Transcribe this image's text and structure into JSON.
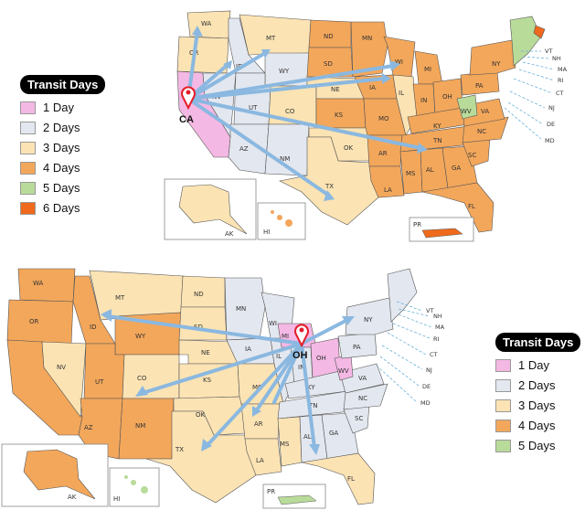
{
  "colors": {
    "day1": "#f4b8e4",
    "day2": "#e3e7ef",
    "day3": "#fbe3b4",
    "day4": "#f3a75b",
    "day5": "#b9db9a",
    "day6": "#ef6a1c",
    "arrow": "#8ab8e0",
    "border": "#555555",
    "pin": "#e41e2a"
  },
  "maps": [
    {
      "origin": "CA",
      "legend": {
        "title": "Transit Days",
        "items": [
          {
            "label": "1 Day",
            "color_key": "day1"
          },
          {
            "label": "2 Days",
            "color_key": "day2"
          },
          {
            "label": "3 Days",
            "color_key": "day3"
          },
          {
            "label": "4 Days",
            "color_key": "day4"
          },
          {
            "label": "5 Days",
            "color_key": "day5"
          },
          {
            "label": "6 Days",
            "color_key": "day6"
          }
        ]
      },
      "insets": [
        "AK",
        "HI",
        "PR"
      ]
    },
    {
      "origin": "OH",
      "legend": {
        "title": "Transit Days",
        "items": [
          {
            "label": "1 Day",
            "color_key": "day1"
          },
          {
            "label": "2 Days",
            "color_key": "day2"
          },
          {
            "label": "3 Days",
            "color_key": "day3"
          },
          {
            "label": "4 Days",
            "color_key": "day4"
          },
          {
            "label": "5 Days",
            "color_key": "day5"
          }
        ]
      },
      "insets": [
        "AK",
        "HI",
        "PR"
      ]
    }
  ],
  "northeast_labels": [
    "VT",
    "NH",
    "MA",
    "RI",
    "CT",
    "NJ",
    "DE",
    "MD"
  ]
}
